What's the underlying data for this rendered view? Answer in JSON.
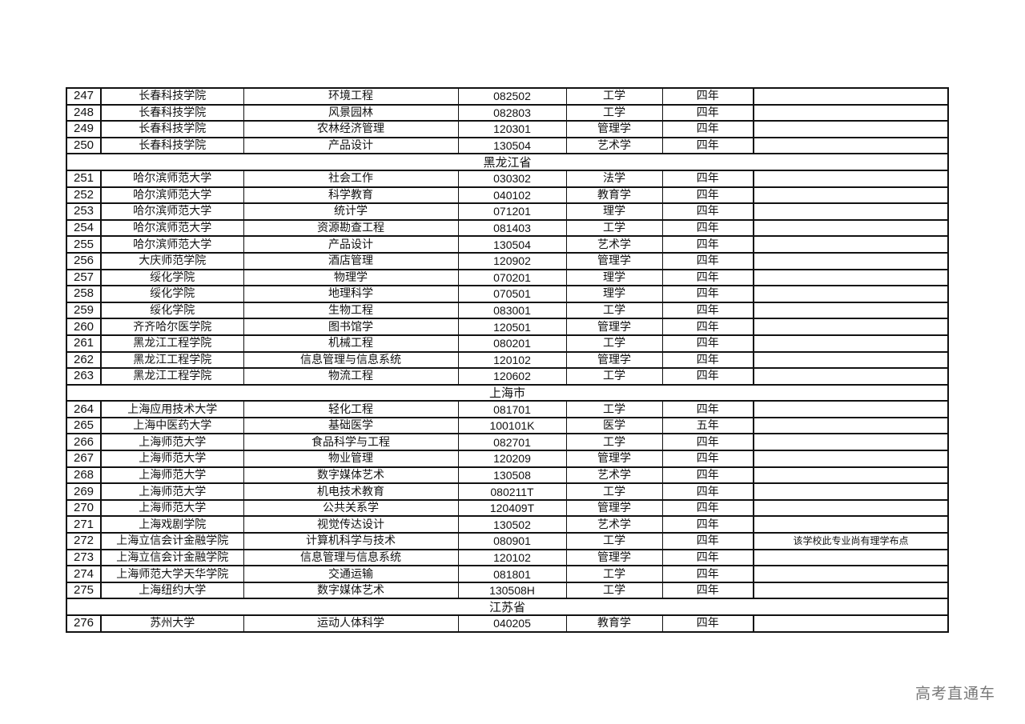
{
  "table": {
    "rows": [
      {
        "type": "data",
        "no": "247",
        "school": "长春科技学院",
        "major": "环境工程",
        "code": "082502",
        "category": "工学",
        "years": "四年",
        "note": ""
      },
      {
        "type": "data",
        "no": "248",
        "school": "长春科技学院",
        "major": "风景园林",
        "code": "082803",
        "category": "工学",
        "years": "四年",
        "note": ""
      },
      {
        "type": "data",
        "no": "249",
        "school": "长春科技学院",
        "major": "农林经济管理",
        "code": "120301",
        "category": "管理学",
        "years": "四年",
        "note": ""
      },
      {
        "type": "data",
        "no": "250",
        "school": "长春科技学院",
        "major": "产品设计",
        "code": "130504",
        "category": "艺术学",
        "years": "四年",
        "note": ""
      },
      {
        "type": "province",
        "name": "黑龙江省"
      },
      {
        "type": "data",
        "no": "251",
        "school": "哈尔滨师范大学",
        "major": "社会工作",
        "code": "030302",
        "category": "法学",
        "years": "四年",
        "note": ""
      },
      {
        "type": "data",
        "no": "252",
        "school": "哈尔滨师范大学",
        "major": "科学教育",
        "code": "040102",
        "category": "教育学",
        "years": "四年",
        "note": ""
      },
      {
        "type": "data",
        "no": "253",
        "school": "哈尔滨师范大学",
        "major": "统计学",
        "code": "071201",
        "category": "理学",
        "years": "四年",
        "note": ""
      },
      {
        "type": "data",
        "no": "254",
        "school": "哈尔滨师范大学",
        "major": "资源勘查工程",
        "code": "081403",
        "category": "工学",
        "years": "四年",
        "note": ""
      },
      {
        "type": "data",
        "no": "255",
        "school": "哈尔滨师范大学",
        "major": "产品设计",
        "code": "130504",
        "category": "艺术学",
        "years": "四年",
        "note": ""
      },
      {
        "type": "data",
        "no": "256",
        "school": "大庆师范学院",
        "major": "酒店管理",
        "code": "120902",
        "category": "管理学",
        "years": "四年",
        "note": ""
      },
      {
        "type": "data",
        "no": "257",
        "school": "绥化学院",
        "major": "物理学",
        "code": "070201",
        "category": "理学",
        "years": "四年",
        "note": ""
      },
      {
        "type": "data",
        "no": "258",
        "school": "绥化学院",
        "major": "地理科学",
        "code": "070501",
        "category": "理学",
        "years": "四年",
        "note": ""
      },
      {
        "type": "data",
        "no": "259",
        "school": "绥化学院",
        "major": "生物工程",
        "code": "083001",
        "category": "工学",
        "years": "四年",
        "note": ""
      },
      {
        "type": "data",
        "no": "260",
        "school": "齐齐哈尔医学院",
        "major": "图书馆学",
        "code": "120501",
        "category": "管理学",
        "years": "四年",
        "note": ""
      },
      {
        "type": "data",
        "no": "261",
        "school": "黑龙江工程学院",
        "major": "机械工程",
        "code": "080201",
        "category": "工学",
        "years": "四年",
        "note": ""
      },
      {
        "type": "data",
        "no": "262",
        "school": "黑龙江工程学院",
        "major": "信息管理与信息系统",
        "code": "120102",
        "category": "管理学",
        "years": "四年",
        "note": ""
      },
      {
        "type": "data",
        "no": "263",
        "school": "黑龙江工程学院",
        "major": "物流工程",
        "code": "120602",
        "category": "工学",
        "years": "四年",
        "note": ""
      },
      {
        "type": "province",
        "name": "上海市"
      },
      {
        "type": "data",
        "no": "264",
        "school": "上海应用技术大学",
        "major": "轻化工程",
        "code": "081701",
        "category": "工学",
        "years": "四年",
        "note": ""
      },
      {
        "type": "data",
        "no": "265",
        "school": "上海中医药大学",
        "major": "基础医学",
        "code": "100101K",
        "category": "医学",
        "years": "五年",
        "note": ""
      },
      {
        "type": "data",
        "no": "266",
        "school": "上海师范大学",
        "major": "食品科学与工程",
        "code": "082701",
        "category": "工学",
        "years": "四年",
        "note": ""
      },
      {
        "type": "data",
        "no": "267",
        "school": "上海师范大学",
        "major": "物业管理",
        "code": "120209",
        "category": "管理学",
        "years": "四年",
        "note": ""
      },
      {
        "type": "data",
        "no": "268",
        "school": "上海师范大学",
        "major": "数字媒体艺术",
        "code": "130508",
        "category": "艺术学",
        "years": "四年",
        "note": ""
      },
      {
        "type": "data",
        "no": "269",
        "school": "上海师范大学",
        "major": "机电技术教育",
        "code": "080211T",
        "category": "工学",
        "years": "四年",
        "note": ""
      },
      {
        "type": "data",
        "no": "270",
        "school": "上海师范大学",
        "major": "公共关系学",
        "code": "120409T",
        "category": "管理学",
        "years": "四年",
        "note": ""
      },
      {
        "type": "data",
        "no": "271",
        "school": "上海戏剧学院",
        "major": "视觉传达设计",
        "code": "130502",
        "category": "艺术学",
        "years": "四年",
        "note": ""
      },
      {
        "type": "data",
        "no": "272",
        "school": "上海立信会计金融学院",
        "major": "计算机科学与技术",
        "code": "080901",
        "category": "工学",
        "years": "四年",
        "note": "该学校此专业尚有理学布点"
      },
      {
        "type": "data",
        "no": "273",
        "school": "上海立信会计金融学院",
        "major": "信息管理与信息系统",
        "code": "120102",
        "category": "管理学",
        "years": "四年",
        "note": ""
      },
      {
        "type": "data",
        "no": "274",
        "school": "上海师范大学天华学院",
        "major": "交通运输",
        "code": "081801",
        "category": "工学",
        "years": "四年",
        "note": ""
      },
      {
        "type": "data",
        "no": "275",
        "school": "上海纽约大学",
        "major": "数字媒体艺术",
        "code": "130508H",
        "category": "工学",
        "years": "四年",
        "note": ""
      },
      {
        "type": "province",
        "name": "江苏省"
      },
      {
        "type": "data",
        "no": "276",
        "school": "苏州大学",
        "major": "运动人体科学",
        "code": "040205",
        "category": "教育学",
        "years": "四年",
        "note": ""
      }
    ]
  },
  "watermark": "高考直通车"
}
